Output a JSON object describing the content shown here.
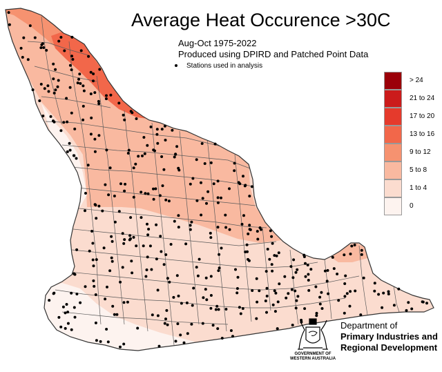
{
  "title": "Average Heat Occurence >30C",
  "subtitle_period": "Aug-Oct 1975-2022",
  "subtitle_source": "Produced using DPIRD and Patched Point Data",
  "stations_label": "Stations used in analysis",
  "legend": [
    {
      "label": "> 24",
      "color": "#9b0009"
    },
    {
      "label": "21 to 24",
      "color": "#cb1b1b"
    },
    {
      "label": "17 to 20",
      "color": "#e53a2c"
    },
    {
      "label": "13 to 16",
      "color": "#f2674a"
    },
    {
      "label": "9 to 12",
      "color": "#f69270"
    },
    {
      "label": "5 to 8",
      "color": "#f9b9a0"
    },
    {
      "label": "1 to 4",
      "color": "#fbdccf"
    },
    {
      "label": "0",
      "color": "#fdf3ef"
    }
  ],
  "logo": {
    "gov_line1": "GOVERNMENT OF",
    "gov_line2": "WESTERN AUSTRALIA",
    "icon": "wa-coat-of-arms-icon"
  },
  "department": {
    "line1": "Department of",
    "line2": "Primary Industries and",
    "line3": "Regional Development"
  }
}
